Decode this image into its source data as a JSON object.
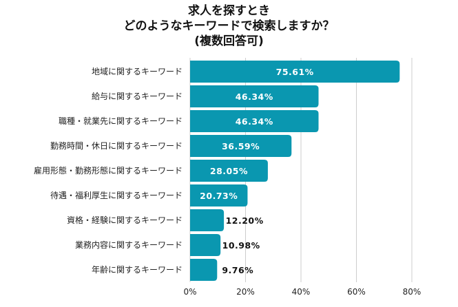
{
  "chart_data": {
    "type": "bar",
    "orientation": "horizontal",
    "title": [
      "求人を探すとき",
      "どのようなキーワードで検索しますか？",
      "(複数回答可)"
    ],
    "categories": [
      "地域に関するキーワード",
      "給与に関するキーワード",
      "職種・就業先に関するキーワード",
      "勤務時間・休日に関するキーワード",
      "雇用形態・勤務形態に関するキーワード",
      "待遇・福利厚生に関するキーワード",
      "資格・経験に関するキーワード",
      "業務内容に関するキーワード",
      "年齢に関するキーワード"
    ],
    "values": [
      75.61,
      46.34,
      46.34,
      36.59,
      28.05,
      20.73,
      12.2,
      10.98,
      9.76
    ],
    "value_labels": [
      "75.61%",
      "46.34%",
      "46.34%",
      "36.59%",
      "28.05%",
      "20.73%",
      "12.20%",
      "10.98%",
      "9.76%"
    ],
    "xlim": [
      0,
      80
    ],
    "xticks": [
      0,
      20,
      40,
      60,
      80
    ],
    "xtick_labels": [
      "0%",
      "20%",
      "40%",
      "60%",
      "80%"
    ],
    "xlabel": "",
    "ylabel": "",
    "grid": true,
    "legend": "none",
    "colors": {
      "bar": "#0a97b0",
      "grid": "#cccccc"
    }
  }
}
